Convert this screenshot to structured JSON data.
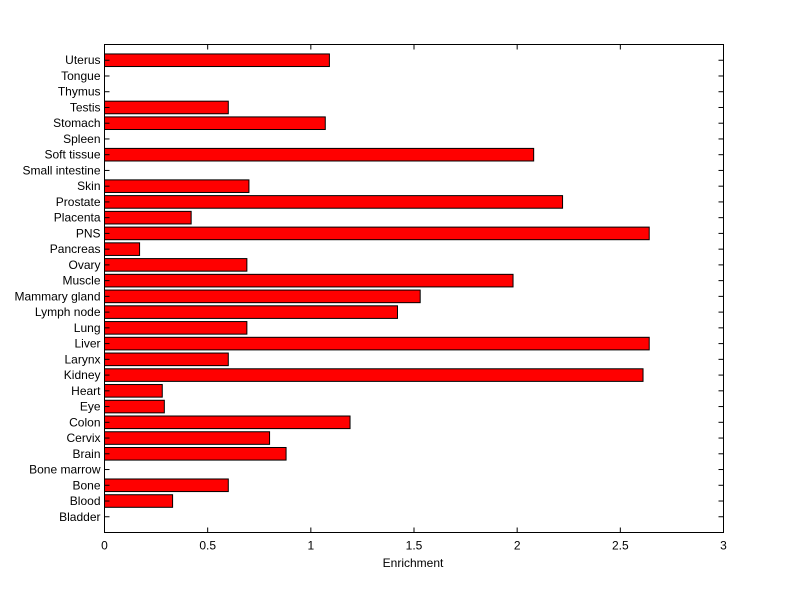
{
  "chart_data": {
    "type": "bar",
    "orientation": "horizontal",
    "title": "",
    "xlabel": "Enrichment",
    "ylabel": "",
    "xlim": [
      0,
      3
    ],
    "xticks": [
      "0",
      "0.5",
      "1",
      "1.5",
      "2",
      "2.5",
      "3"
    ],
    "grid": false,
    "bar_color": "#ff0000",
    "categories": [
      "Bladder",
      "Blood",
      "Bone",
      "Bone marrow",
      "Brain",
      "Cervix",
      "Colon",
      "Eye",
      "Heart",
      "Kidney",
      "Larynx",
      "Liver",
      "Lung",
      "Lymph node",
      "Mammary gland",
      "Muscle",
      "Ovary",
      "Pancreas",
      "PNS",
      "Placenta",
      "Prostate",
      "Skin",
      "Small intestine",
      "Soft tissue",
      "Spleen",
      "Stomach",
      "Testis",
      "Thymus",
      "Tongue",
      "Uterus"
    ],
    "values": [
      0,
      0.33,
      0.6,
      0,
      0.88,
      0.8,
      1.19,
      0.29,
      0.28,
      2.61,
      0.6,
      2.64,
      0.69,
      1.42,
      1.53,
      1.98,
      0.69,
      0.17,
      2.64,
      0.42,
      2.22,
      0.7,
      0,
      2.08,
      0,
      1.07,
      0.6,
      0,
      0,
      1.09
    ]
  }
}
